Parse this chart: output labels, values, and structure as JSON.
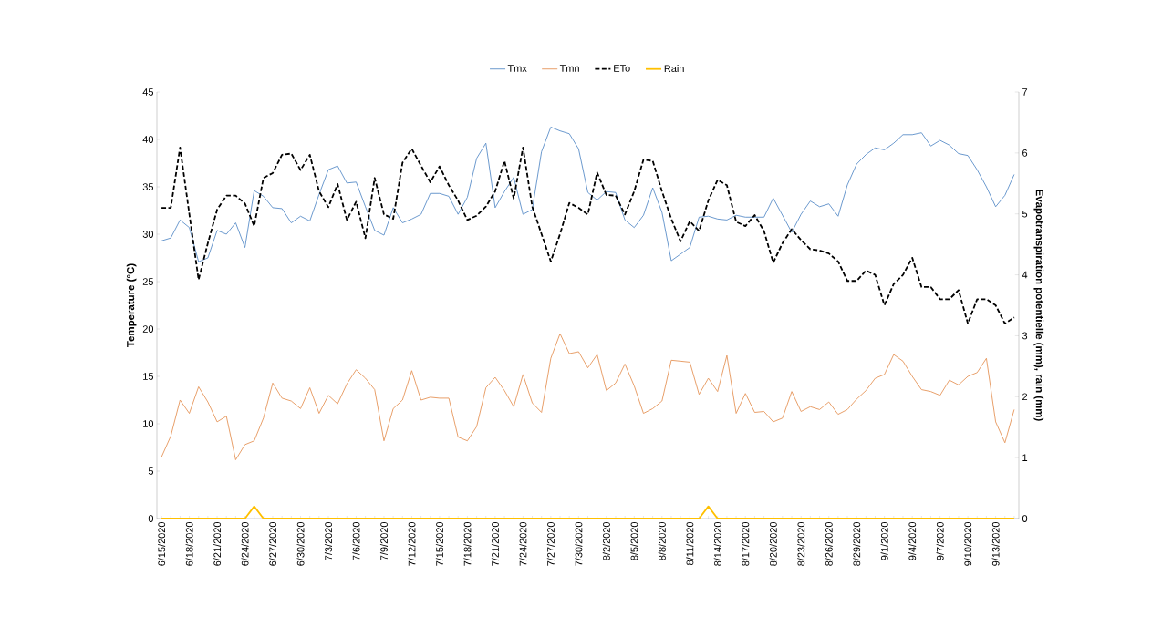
{
  "chart_data": {
    "type": "line",
    "categories": [
      "6/15/2020",
      null,
      null,
      "6/18/2020",
      null,
      null,
      "6/21/2020",
      null,
      null,
      "6/24/2020",
      null,
      null,
      "6/27/2020",
      null,
      null,
      "6/30/2020",
      null,
      null,
      "7/3/2020",
      null,
      null,
      "7/6/2020",
      null,
      null,
      "7/9/2020",
      null,
      null,
      "7/12/2020",
      null,
      null,
      "7/15/2020",
      null,
      null,
      "7/18/2020",
      null,
      null,
      "7/21/2020",
      null,
      null,
      "7/24/2020",
      null,
      null,
      "7/27/2020",
      null,
      null,
      "7/30/2020",
      null,
      null,
      "8/2/2020",
      null,
      null,
      "8/5/2020",
      null,
      null,
      "8/8/2020",
      null,
      null,
      "8/11/2020",
      null,
      null,
      "8/14/2020",
      null,
      null,
      "8/17/2020",
      null,
      null,
      "8/20/2020",
      null,
      null,
      "8/23/2020",
      null,
      null,
      "8/26/2020",
      null,
      null,
      "8/29/2020",
      null,
      null,
      "9/1/2020",
      null,
      null,
      "9/4/2020",
      null,
      null,
      "9/7/2020",
      null,
      null,
      "9/10/2020",
      null,
      null,
      "9/13/2020",
      null,
      null
    ],
    "series": [
      {
        "name": "Tmx",
        "color": "#5b8ec8",
        "line_style": "solid",
        "values": [
          29.3,
          29.6,
          31.5,
          30.7,
          27.1,
          27.5,
          30.4,
          30.0,
          31.2,
          28.6,
          34.6,
          34.0,
          32.8,
          32.7,
          31.2,
          31.9,
          31.4,
          34.2,
          36.8,
          37.2,
          35.4,
          35.5,
          32.9,
          30.4,
          29.9,
          32.8,
          31.2,
          31.6,
          32.1,
          34.3,
          34.3,
          34.0,
          32.1,
          33.9,
          38.0,
          39.6,
          32.8,
          34.5,
          36.0,
          32.1,
          32.6,
          38.7,
          41.3,
          40.9,
          40.6,
          39.0,
          34.4,
          33.6,
          34.5,
          34.4,
          31.5,
          30.7,
          32.0,
          34.9,
          32.3,
          27.2,
          27.9,
          28.6,
          31.8,
          31.9,
          31.6,
          31.5,
          32.0,
          31.8,
          31.8,
          31.8,
          33.8,
          32.0,
          30.2,
          32.1,
          33.5,
          32.9,
          33.2,
          31.9,
          35.2,
          37.4,
          38.4,
          39.1,
          38.9,
          39.6,
          40.5,
          40.5,
          40.7,
          39.3,
          39.9,
          39.4,
          38.5,
          38.3,
          36.8,
          35.0,
          32.9,
          34.1,
          36.3
        ]
      },
      {
        "name": "Tmn",
        "color": "#e5955a",
        "line_style": "solid",
        "values": [
          6.5,
          8.7,
          12.5,
          11.1,
          13.9,
          12.3,
          10.2,
          10.8,
          6.2,
          7.8,
          8.2,
          10.6,
          14.3,
          12.7,
          12.4,
          11.6,
          13.8,
          11.1,
          13.0,
          12.1,
          14.2,
          15.7,
          14.8,
          13.6,
          8.2,
          11.6,
          12.5,
          15.6,
          12.5,
          12.8,
          12.7,
          12.7,
          8.6,
          8.2,
          9.7,
          13.8,
          14.9,
          13.5,
          11.8,
          15.2,
          12.2,
          11.2,
          16.9,
          19.5,
          17.4,
          17.6,
          15.9,
          17.3,
          13.5,
          14.3,
          16.3,
          14.0,
          11.1,
          11.6,
          12.4,
          16.7,
          16.6,
          16.5,
          13.1,
          14.8,
          13.4,
          17.2,
          11.1,
          13.2,
          11.2,
          11.3,
          10.2,
          10.6,
          13.4,
          11.3,
          11.8,
          11.5,
          12.3,
          11.0,
          11.5,
          12.6,
          13.5,
          14.8,
          15.2,
          17.3,
          16.6,
          15.0,
          13.6,
          13.4,
          13.0,
          14.6,
          14.1,
          15.0,
          15.4,
          16.9,
          10.2,
          8.0,
          11.5
        ]
      },
      {
        "name": "ETo",
        "color": "#000000",
        "line_style": "dashed",
        "axis": "y2",
        "values": [
          5.1,
          5.1,
          6.09,
          5.0,
          3.92,
          4.52,
          5.07,
          5.3,
          5.3,
          5.17,
          4.8,
          5.59,
          5.67,
          5.97,
          5.99,
          5.72,
          5.97,
          5.37,
          5.11,
          5.49,
          4.9,
          5.2,
          4.6,
          5.59,
          4.99,
          4.92,
          5.84,
          6.07,
          5.79,
          5.52,
          5.78,
          5.47,
          5.22,
          4.9,
          4.97,
          5.12,
          5.37,
          5.87,
          5.25,
          6.09,
          5.12,
          4.67,
          4.22,
          4.67,
          5.18,
          5.1,
          4.99,
          5.68,
          5.31,
          5.3,
          4.99,
          5.37,
          5.89,
          5.87,
          5.37,
          4.92,
          4.55,
          4.88,
          4.72,
          5.22,
          5.56,
          5.47,
          4.87,
          4.8,
          4.98,
          4.72,
          4.2,
          4.52,
          4.75,
          4.57,
          4.42,
          4.4,
          4.35,
          4.22,
          3.9,
          3.9,
          4.07,
          4.0,
          3.5,
          3.85,
          4.0,
          4.28,
          3.8,
          3.8,
          3.6,
          3.6,
          3.75,
          3.2,
          3.6,
          3.6,
          3.5,
          3.2,
          3.3
        ]
      },
      {
        "name": "Rain",
        "color": "#ffc000",
        "line_style": "solid",
        "axis": "y2",
        "values": [
          0,
          0,
          0,
          0,
          0,
          0,
          0,
          0,
          0,
          0,
          0.2,
          0,
          0,
          0,
          0,
          0,
          0,
          0,
          0,
          0,
          0,
          0,
          0,
          0,
          0,
          0,
          0,
          0,
          0,
          0,
          0,
          0,
          0,
          0,
          0,
          0,
          0,
          0,
          0,
          0,
          0,
          0,
          0,
          0,
          0,
          0,
          0,
          0,
          0,
          0,
          0,
          0,
          0,
          0,
          0,
          0,
          0,
          0,
          0,
          0.2,
          0,
          0,
          0,
          0,
          0,
          0,
          0,
          0,
          0,
          0,
          0,
          0,
          0,
          0,
          0,
          0,
          0,
          0,
          0,
          0,
          0,
          0,
          0,
          0,
          0,
          0,
          0,
          0,
          0,
          0,
          0,
          0,
          0
        ]
      }
    ],
    "ylabel": "Temperature (°C)",
    "y2label": "Evapotranspiration potentielle (mm), rain (mm)",
    "ylim": [
      0,
      45
    ],
    "yticks": [
      0,
      5,
      10,
      15,
      20,
      25,
      30,
      35,
      40,
      45
    ],
    "y2lim": [
      0,
      7
    ],
    "y2ticks": [
      0,
      1,
      2,
      3,
      4,
      5,
      6,
      7
    ],
    "legend": "top",
    "marker": "none",
    "grid": false
  }
}
